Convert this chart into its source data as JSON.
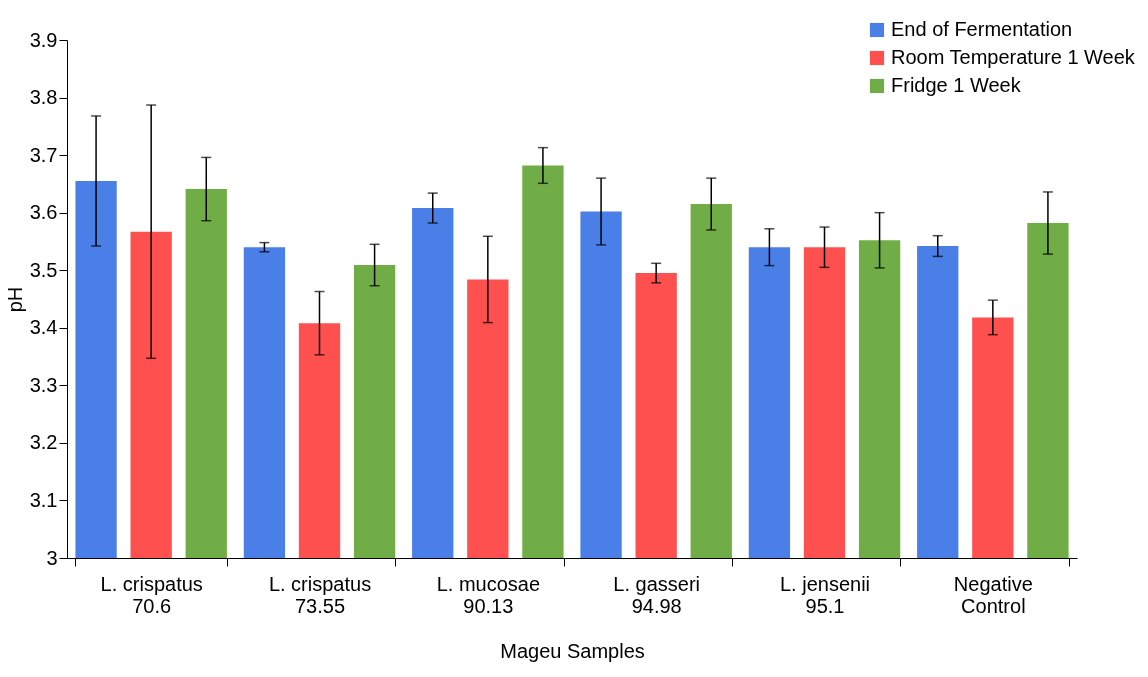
{
  "chart_data": {
    "type": "bar",
    "xlabel": "Mageu Samples",
    "ylabel": "pH",
    "categories": [
      "L. crispatus\n70.6",
      "L. crispatus\n73.55",
      "L. mucosae\n90.13",
      "L. gasseri\n94.98",
      "L. jensenii\n95.1",
      "Negative\nControl"
    ],
    "series": [
      {
        "name": "End of Fermentation",
        "color": "#4a7fe8",
        "values": [
          3.655,
          3.54,
          3.608,
          3.602,
          3.54,
          3.542
        ],
        "errors": [
          0.113,
          0.008,
          0.026,
          0.058,
          0.032,
          0.018
        ]
      },
      {
        "name": "Room Temperature 1 Week",
        "color": "#ff5050",
        "values": [
          3.567,
          3.408,
          3.484,
          3.495,
          3.54,
          3.418
        ],
        "errors": [
          0.22,
          0.055,
          0.075,
          0.017,
          0.035,
          0.03
        ]
      },
      {
        "name": "Fridge 1 Week",
        "color": "#70ad47",
        "values": [
          3.641,
          3.509,
          3.682,
          3.615,
          3.552,
          3.582
        ],
        "errors": [
          0.055,
          0.036,
          0.031,
          0.045,
          0.048,
          0.054
        ]
      }
    ],
    "ylim": [
      3,
      3.9
    ],
    "yticks": [
      3,
      3.1,
      3.2,
      3.3,
      3.4,
      3.5,
      3.6,
      3.7,
      3.8,
      3.9
    ],
    "grid": false,
    "legend": "top right"
  }
}
